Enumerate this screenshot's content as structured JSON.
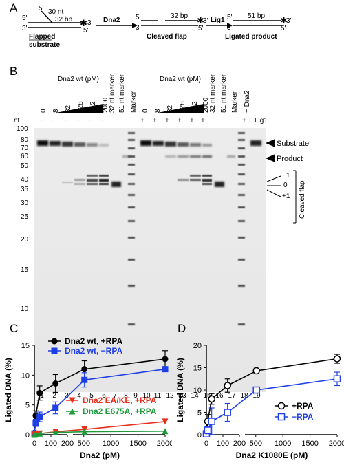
{
  "panels": {
    "a": "A",
    "b": "B",
    "c": "C",
    "d": "D"
  },
  "schematic": {
    "five_prime": "5'",
    "three_prime": "3'",
    "nt30": "30 nt",
    "bp32": "32 bp",
    "star": "✱",
    "flapped": "Flapped",
    "substrate": "substrate",
    "dna2": "Dna2",
    "cleaved": "Cleaved flap",
    "lig1": "Lig1",
    "bp51": "51 bp",
    "ligated": "Ligated product"
  },
  "gel": {
    "group_left": "Dna2 wt (pM)",
    "group_right": "Dna2 wt (pM)",
    "conc_left": [
      "0",
      "8",
      "32",
      "128",
      "512",
      "2000"
    ],
    "conc_right": [
      "0",
      "8",
      "32",
      "128",
      "512",
      "2000"
    ],
    "marker32": "32 nt marker",
    "marker51": "51 nt marker",
    "marker": "Marker",
    "minus_dna2": "− Dna2",
    "nt_label": "nt",
    "lig_signs_left": [
      "−",
      "−",
      "−",
      "−",
      "−",
      "−"
    ],
    "lig_signs_right": [
      "+",
      "+",
      "+",
      "+",
      "+",
      "+"
    ],
    "lig_sign_18": "+",
    "lig1": "Lig1",
    "sizes": [
      "100",
      "80",
      "70",
      "60",
      "50",
      "40",
      "35",
      "30",
      "25",
      "20",
      "15",
      "10"
    ],
    "lanes": [
      "1",
      "2",
      "3",
      "4",
      "5",
      "6",
      "7",
      "8",
      "9",
      "10",
      "11",
      "12",
      "13",
      "14",
      "15",
      "16",
      "17",
      "18",
      "19"
    ],
    "right_labels": {
      "substrate": "Substrate",
      "product": "Product",
      "m1": "−1",
      "z": "0",
      "p1": "+1",
      "cleaved": "Cleaved flap"
    }
  },
  "chart_data": [
    {
      "type": "line",
      "panel": "C",
      "xlabel": "Dna2 (pM)",
      "ylabel": "Ligated DNA (%)",
      "ylim": [
        0,
        15
      ],
      "y_ticks": [
        "0",
        "5",
        "10",
        "15"
      ],
      "x_ticks": [
        "0",
        "100",
        "200",
        "500",
        "1000",
        "1500",
        "2000"
      ],
      "x_break": [
        200,
        300
      ],
      "series": [
        {
          "name": "Dna2 wt, +RPA",
          "color": "#000000",
          "marker": "circle",
          "x": [
            0,
            8,
            32,
            128,
            512,
            2000
          ],
          "y": [
            0.3,
            3.2,
            7.0,
            8.6,
            11.0,
            12.7
          ],
          "err": [
            0.3,
            0.8,
            1.2,
            1.5,
            1.4,
            1.4
          ]
        },
        {
          "name": "Dna2 wt, −RPA",
          "color": "#1f3fe6",
          "marker": "square",
          "x": [
            0,
            8,
            32,
            128,
            512,
            2000
          ],
          "y": [
            0.2,
            2.0,
            3.0,
            4.5,
            9.2,
            11.0
          ],
          "err": [
            0.2,
            0.6,
            0.8,
            1.0,
            1.2,
            0.4
          ]
        },
        {
          "name": "Dna2 EA/KE, +RPA",
          "color": "#e8301c",
          "marker": "triangle-down",
          "x": [
            0,
            8,
            32,
            128,
            512,
            2000
          ],
          "y": [
            0.0,
            0.1,
            0.2,
            0.5,
            0.9,
            2.2
          ],
          "err": [
            0,
            0,
            0,
            0,
            0,
            0
          ]
        },
        {
          "name": "Dna2 E675A, +RPA",
          "color": "#1f9a3a",
          "marker": "triangle-up",
          "x": [
            0,
            8,
            32,
            128,
            512,
            2000
          ],
          "y": [
            0.0,
            0.1,
            0.2,
            0.4,
            0.5,
            0.6
          ],
          "err": [
            0,
            0,
            0,
            0,
            0,
            0
          ]
        }
      ]
    },
    {
      "type": "line",
      "panel": "D",
      "xlabel": "Dna2 K1080E (pM)",
      "ylabel": "Ligated DNA (%)",
      "ylim": [
        0,
        20
      ],
      "y_ticks": [
        "0",
        "5",
        "10",
        "15",
        "20"
      ],
      "x_ticks": [
        "0",
        "100",
        "200",
        "500",
        "1000",
        "1500",
        "2000"
      ],
      "x_break": [
        200,
        300
      ],
      "series": [
        {
          "name": "+RPA",
          "color": "#000000",
          "marker": "open-circle",
          "x": [
            0,
            8,
            32,
            128,
            512,
            2000
          ],
          "y": [
            0.3,
            3.0,
            8.0,
            11.0,
            14.3,
            17.0
          ],
          "err": [
            0.3,
            1.5,
            1.2,
            1.5,
            0.6,
            1.0
          ]
        },
        {
          "name": "−RPA",
          "color": "#1f3fe6",
          "marker": "open-square",
          "x": [
            0,
            8,
            32,
            128,
            512,
            2000
          ],
          "y": [
            0.2,
            1.0,
            3.0,
            5.0,
            10.0,
            12.5
          ],
          "err": [
            0.2,
            0.8,
            3.0,
            2.0,
            0.5,
            1.5
          ]
        }
      ]
    }
  ]
}
